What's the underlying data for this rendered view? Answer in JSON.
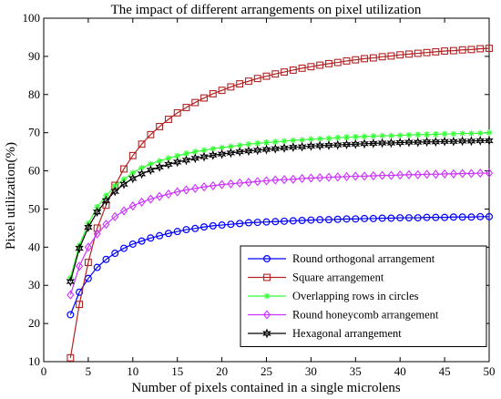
{
  "chart_data": {
    "type": "line",
    "title": "The impact of different arrangements on pixel utilization",
    "xlabel": "Number of pixels contained in a single microlens",
    "ylabel": "Pixel utilization(%)",
    "xlim": [
      0,
      50
    ],
    "ylim": [
      10,
      100
    ],
    "xticks": [
      0,
      5,
      10,
      15,
      20,
      25,
      30,
      35,
      40,
      45,
      50
    ],
    "yticks": [
      10,
      20,
      30,
      40,
      50,
      60,
      70,
      80,
      90,
      100
    ],
    "grid": false,
    "legend_position": "bottom-right",
    "series": [
      {
        "name": "Round orthogonal arrangement",
        "color": "#0000ff",
        "marker": "circle",
        "x": [
          3,
          4,
          5,
          6,
          7,
          8,
          9,
          10,
          11,
          12,
          13,
          14,
          15,
          16,
          17,
          18,
          19,
          20,
          21,
          22,
          23,
          24,
          25,
          26,
          27,
          28,
          29,
          30,
          31,
          32,
          33,
          34,
          35,
          36,
          37,
          38,
          39,
          40,
          41,
          42,
          43,
          44,
          45,
          46,
          47,
          48,
          49,
          50
        ],
        "values": [
          22.3,
          28.2,
          31.8,
          34.7,
          36.8,
          38.4,
          39.7,
          40.8,
          41.6,
          42.4,
          43.0,
          43.6,
          44.1,
          44.6,
          44.9,
          45.3,
          45.6,
          45.8,
          46.0,
          46.2,
          46.4,
          46.5,
          46.6,
          46.7,
          46.8,
          46.9,
          47.0,
          47.1,
          47.2,
          47.2,
          47.3,
          47.4,
          47.4,
          47.5,
          47.5,
          47.6,
          47.6,
          47.7,
          47.7,
          47.7,
          47.8,
          47.8,
          47.8,
          47.9,
          47.9,
          47.9,
          48.0,
          48.0
        ]
      },
      {
        "name": "Square arrangement",
        "color": "#b22222",
        "marker": "square",
        "x": [
          3,
          4,
          5,
          6,
          7,
          8,
          9,
          10,
          11,
          12,
          13,
          14,
          15,
          16,
          17,
          18,
          19,
          20,
          21,
          22,
          23,
          24,
          25,
          26,
          27,
          28,
          29,
          30,
          31,
          32,
          33,
          34,
          35,
          36,
          37,
          38,
          39,
          40,
          41,
          42,
          43,
          44,
          45,
          46,
          47,
          48,
          49,
          50
        ],
        "values": [
          11.0,
          25.0,
          36.0,
          45.0,
          51.0,
          56.2,
          60.5,
          64.0,
          67.0,
          69.5,
          71.6,
          73.5,
          75.2,
          76.6,
          77.9,
          79.1,
          80.2,
          81.1,
          82.0,
          82.8,
          83.5,
          84.2,
          84.8,
          85.4,
          85.9,
          86.4,
          86.9,
          87.3,
          87.7,
          88.1,
          88.4,
          88.8,
          89.1,
          89.4,
          89.6,
          89.9,
          90.1,
          90.4,
          90.6,
          90.8,
          91.0,
          91.2,
          91.4,
          91.5,
          91.7,
          91.8,
          92.0,
          92.1
        ]
      },
      {
        "name": "Overlapping rows in circles",
        "color": "#33ff33",
        "marker": "asterisk",
        "x": [
          3,
          4,
          5,
          6,
          7,
          8,
          9,
          10,
          11,
          12,
          13,
          14,
          15,
          16,
          17,
          18,
          19,
          20,
          21,
          22,
          23,
          24,
          25,
          26,
          27,
          28,
          29,
          30,
          31,
          32,
          33,
          34,
          35,
          36,
          37,
          38,
          39,
          40,
          41,
          42,
          43,
          44,
          45,
          46,
          47,
          48,
          49,
          50
        ],
        "values": [
          32.0,
          40.5,
          46.2,
          50.5,
          53.5,
          56.0,
          57.8,
          59.5,
          60.8,
          61.8,
          62.6,
          63.3,
          63.9,
          64.5,
          65.0,
          65.4,
          65.8,
          66.1,
          66.4,
          66.7,
          67.0,
          67.2,
          67.4,
          67.6,
          67.8,
          68.0,
          68.1,
          68.3,
          68.4,
          68.5,
          68.7,
          68.8,
          68.9,
          69.0,
          69.1,
          69.2,
          69.2,
          69.3,
          69.4,
          69.5,
          69.5,
          69.6,
          69.7,
          69.7,
          69.8,
          69.8,
          69.9,
          70.0
        ]
      },
      {
        "name": "Round honeycomb arrangement",
        "color": "#cc33ff",
        "marker": "diamond",
        "x": [
          3,
          4,
          5,
          6,
          7,
          8,
          9,
          10,
          11,
          12,
          13,
          14,
          15,
          16,
          17,
          18,
          19,
          20,
          21,
          22,
          23,
          24,
          25,
          26,
          27,
          28,
          29,
          30,
          31,
          32,
          33,
          34,
          35,
          36,
          37,
          38,
          39,
          40,
          41,
          42,
          43,
          44,
          45,
          46,
          47,
          48,
          49,
          50
        ],
        "values": [
          27.5,
          35.0,
          40.0,
          43.5,
          46.0,
          48.0,
          49.5,
          50.8,
          51.8,
          52.6,
          53.3,
          53.9,
          54.5,
          55.0,
          55.4,
          55.8,
          56.1,
          56.4,
          56.6,
          56.8,
          57.0,
          57.2,
          57.4,
          57.6,
          57.7,
          57.8,
          58.0,
          58.1,
          58.2,
          58.3,
          58.4,
          58.5,
          58.6,
          58.6,
          58.7,
          58.8,
          58.8,
          58.9,
          59.0,
          59.0,
          59.1,
          59.1,
          59.2,
          59.2,
          59.3,
          59.3,
          59.4,
          59.4
        ]
      },
      {
        "name": "Hexagonal arrangement",
        "color": "#000000",
        "marker": "hexagram",
        "x": [
          3,
          4,
          5,
          6,
          7,
          8,
          9,
          10,
          11,
          12,
          13,
          14,
          15,
          16,
          17,
          18,
          19,
          20,
          21,
          22,
          23,
          24,
          25,
          26,
          27,
          28,
          29,
          30,
          31,
          32,
          33,
          34,
          35,
          36,
          37,
          38,
          39,
          40,
          41,
          42,
          43,
          44,
          45,
          46,
          47,
          48,
          49,
          50
        ],
        "values": [
          31.0,
          39.7,
          45.2,
          49.2,
          52.2,
          54.6,
          56.5,
          58.0,
          59.2,
          60.2,
          61.0,
          61.7,
          62.3,
          62.8,
          63.3,
          63.7,
          64.1,
          64.4,
          64.7,
          65.0,
          65.2,
          65.4,
          65.6,
          65.8,
          66.0,
          66.2,
          66.3,
          66.5,
          66.6,
          66.7,
          66.8,
          66.9,
          67.0,
          67.1,
          67.2,
          67.3,
          67.3,
          67.4,
          67.5,
          67.5,
          67.6,
          67.6,
          67.7,
          67.7,
          67.8,
          67.8,
          67.9,
          67.9
        ]
      }
    ]
  }
}
